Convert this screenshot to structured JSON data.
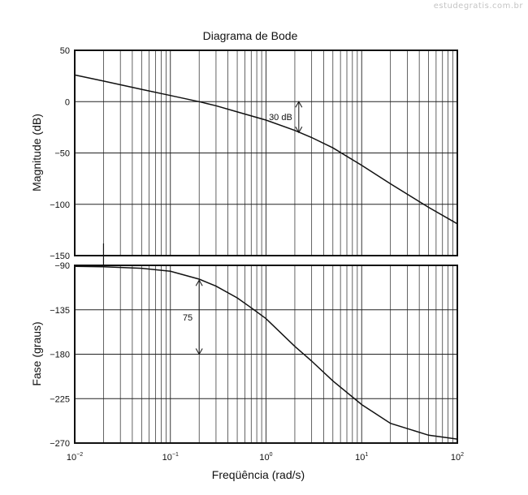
{
  "watermark": "estudegratis.com.br",
  "chart_data": [
    {
      "type": "line",
      "title": "Diagrama de Bode",
      "ylabel": "Magnitude (dB)",
      "xscale": "log",
      "xlim": [
        0.01,
        100
      ],
      "ylim": [
        -150,
        50
      ],
      "yticks": [
        50,
        0,
        -50,
        -100,
        -150
      ],
      "ytick_labels": [
        "50",
        "0",
        "−50",
        "−100",
        "−150"
      ],
      "grid": true,
      "series": [
        {
          "x": [
            0.01,
            0.02,
            0.05,
            0.1,
            0.2,
            0.3,
            0.5,
            1,
            2,
            3,
            5,
            10,
            20,
            50,
            100
          ],
          "values": [
            26,
            20,
            12,
            6,
            0,
            -4,
            -10,
            -18,
            -28,
            -35,
            -45,
            -62,
            -80,
            -103,
            -119
          ]
        }
      ],
      "annotations": [
        {
          "text": "30 dB",
          "x": 2.2,
          "y_from": 0,
          "y_to": -30
        }
      ]
    },
    {
      "type": "line",
      "xlabel": "Freqüência (rad/s)",
      "ylabel": "Fase (graus)",
      "xscale": "log",
      "xlim": [
        0.01,
        100
      ],
      "ylim": [
        -270,
        -90
      ],
      "xticks": [
        0.01,
        0.1,
        1,
        10,
        100
      ],
      "xtick_labels": [
        {
          "base": "10",
          "exp": "−2"
        },
        {
          "base": "10",
          "exp": "−1"
        },
        {
          "base": "10",
          "exp": "0"
        },
        {
          "base": "10",
          "exp": "1"
        },
        {
          "base": "10",
          "exp": "2"
        }
      ],
      "yticks": [
        -90,
        -135,
        -180,
        -225,
        -270
      ],
      "ytick_labels": [
        "−90",
        "−135",
        "−180",
        "−225",
        "−270"
      ],
      "grid": true,
      "series": [
        {
          "x": [
            0.01,
            0.02,
            0.05,
            0.1,
            0.2,
            0.3,
            0.5,
            0.7,
            1,
            2,
            3,
            5,
            10,
            20,
            50,
            100
          ],
          "values": [
            -91,
            -91.5,
            -93,
            -96,
            -104,
            -111,
            -123,
            -133,
            -144,
            -172,
            -187,
            -207,
            -231,
            -250,
            -262,
            -266
          ]
        }
      ],
      "annotations": [
        {
          "text": "75",
          "x": 0.2,
          "y_from": -105,
          "y_to": -180
        }
      ]
    }
  ]
}
